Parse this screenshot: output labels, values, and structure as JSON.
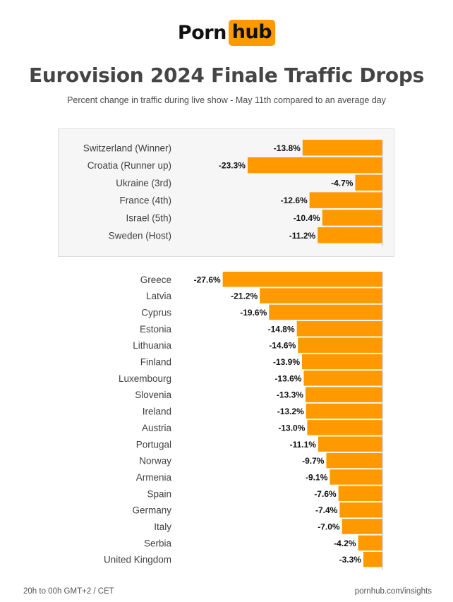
{
  "logo": {
    "left": "Porn",
    "right": "hub",
    "accent": "#ff9900"
  },
  "title": "Eurovision 2024 Finale Traffic Drops",
  "subtitle": "Percent change in traffic during live show - May 11th compared to an average day",
  "footer": {
    "left": "20h to 00h GMT+2 / CET",
    "right": "pornhub.com/insights"
  },
  "chart_data": [
    {
      "type": "bar",
      "orientation": "horizontal",
      "bar_color": "#ff9900",
      "categories": [
        "Switzerland (Winner)",
        "Croatia (Runner up)",
        "Ukraine (3rd)",
        "France (4th)",
        "Israel (5th)",
        "Sweden (Host)"
      ],
      "values": [
        -13.8,
        -23.3,
        -4.7,
        -12.6,
        -10.4,
        -11.2
      ],
      "labels": [
        "-13.8%",
        "-23.3%",
        "-4.7%",
        "-12.6%",
        "-10.4%",
        "-11.2%"
      ]
    },
    {
      "type": "bar",
      "orientation": "horizontal",
      "bar_color": "#ff9900",
      "categories": [
        "Greece",
        "Latvia",
        "Cyprus",
        "Estonia",
        "Lithuania",
        "Finland",
        "Luxembourg",
        "Slovenia",
        "Ireland",
        "Austria",
        "Portugal",
        "Norway",
        "Armenia",
        "Spain",
        "Germany",
        "Italy",
        "Serbia",
        "United Kingdom"
      ],
      "values": [
        -27.6,
        -21.2,
        -19.6,
        -14.8,
        -14.6,
        -13.9,
        -13.6,
        -13.3,
        -13.2,
        -13.0,
        -11.1,
        -9.7,
        -9.1,
        -7.6,
        -7.4,
        -7.0,
        -4.2,
        -3.3
      ],
      "labels": [
        "-27.6%",
        "-21.2%",
        "-19.6%",
        "-14.8%",
        "-14.6%",
        "-13.9%",
        "-13.6%",
        "-13.3%",
        "-13.2%",
        "-13.0%",
        "-11.1%",
        "-9.7%",
        "-9.1%",
        "-7.6%",
        "-7.4%",
        "-7.0%",
        "-4.2%",
        "-3.3%"
      ]
    }
  ]
}
